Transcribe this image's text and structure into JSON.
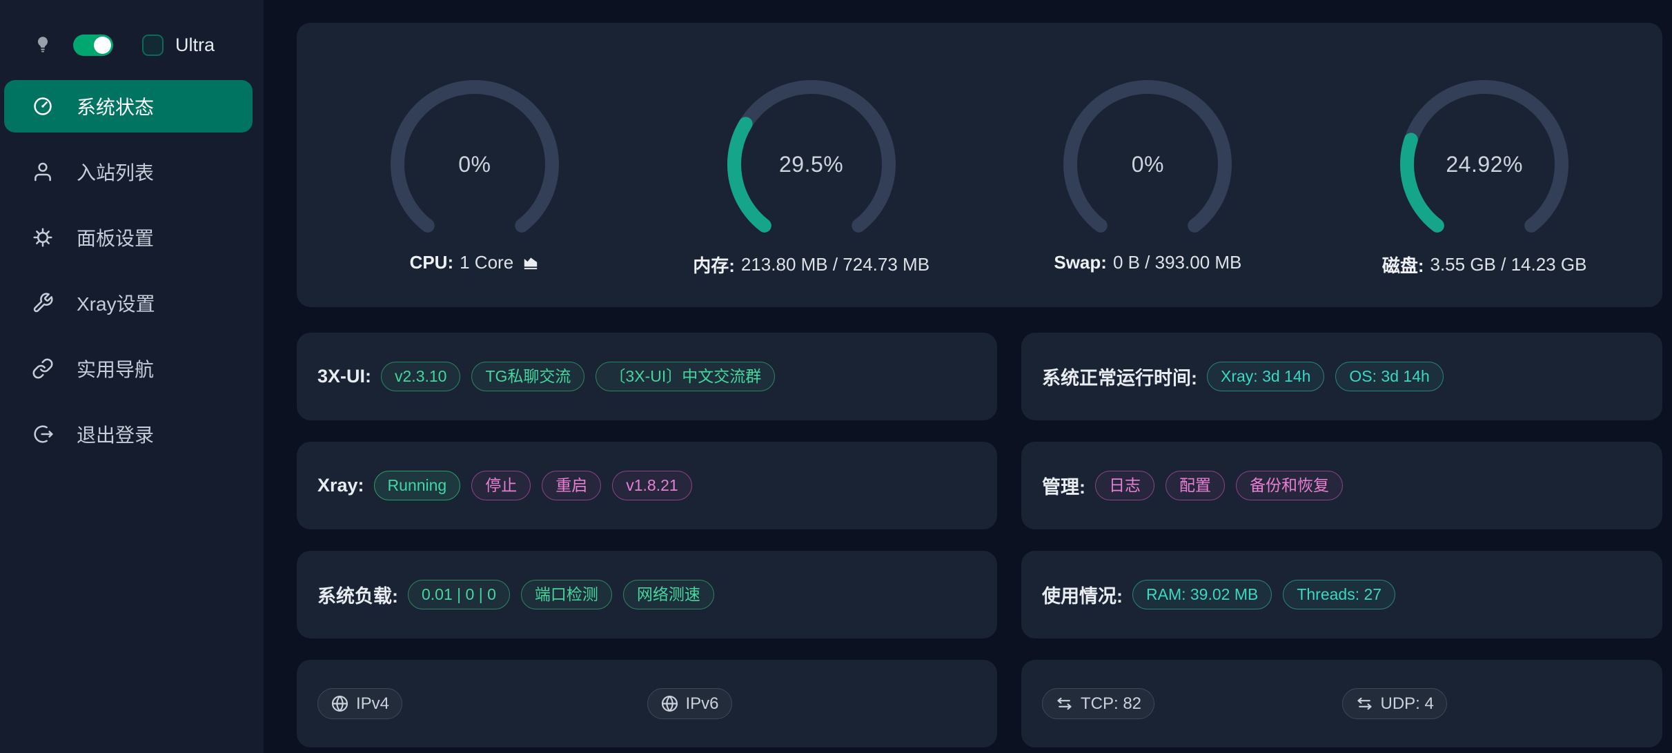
{
  "sidebar": {
    "ultra_label": "Ultra",
    "dark_mode_on": true,
    "ultra_checked": false,
    "items": [
      {
        "name": "system-status",
        "icon": "dashboard-icon",
        "label": "系统状态",
        "active": true
      },
      {
        "name": "inbounds",
        "icon": "user-icon",
        "label": "入站列表",
        "active": false
      },
      {
        "name": "panel-settings",
        "icon": "gear-icon",
        "label": "面板设置",
        "active": false
      },
      {
        "name": "xray-settings",
        "icon": "wrench-icon",
        "label": "Xray设置",
        "active": false
      },
      {
        "name": "useful-links",
        "icon": "link-icon",
        "label": "实用导航",
        "active": false
      },
      {
        "name": "logout",
        "icon": "logout-icon",
        "label": "退出登录",
        "active": false
      }
    ]
  },
  "gauges": [
    {
      "name": "cpu-gauge",
      "percent": 0,
      "percent_label": "0%",
      "label": "CPU:",
      "value": "1 Core",
      "chart_icon": true
    },
    {
      "name": "memory-gauge",
      "percent": 29.5,
      "percent_label": "29.5%",
      "label": "内存:",
      "value": "213.80 MB / 724.73 MB",
      "chart_icon": false
    },
    {
      "name": "swap-gauge",
      "percent": 0,
      "percent_label": "0%",
      "label": "Swap:",
      "value": "0 B / 393.00 MB",
      "chart_icon": false
    },
    {
      "name": "disk-gauge",
      "percent": 24.92,
      "percent_label": "24.92%",
      "label": "磁盘:",
      "value": "3.55 GB / 14.23 GB",
      "chart_icon": false
    }
  ],
  "cards": [
    {
      "name": "xui-info-card",
      "label": "3X-UI:",
      "split": false,
      "badges": [
        {
          "name": "panel-version-badge",
          "text": "v2.3.10",
          "style": "green",
          "interactable": true
        },
        {
          "name": "tg-chat-badge",
          "text": "TG私聊交流",
          "style": "green",
          "interactable": true
        },
        {
          "name": "tg-group-badge",
          "text": "〔3X-UI〕中文交流群",
          "style": "green",
          "interactable": true
        }
      ]
    },
    {
      "name": "uptime-card",
      "label": "系统正常运行时间:",
      "split": false,
      "badges": [
        {
          "name": "xray-uptime-badge",
          "text": "Xray: 3d 14h",
          "style": "teal",
          "interactable": false
        },
        {
          "name": "os-uptime-badge",
          "text": "OS: 3d 14h",
          "style": "teal",
          "interactable": false
        }
      ]
    },
    {
      "name": "xray-card",
      "label": "Xray:",
      "split": false,
      "badges": [
        {
          "name": "xray-running-badge",
          "text": "Running",
          "style": "running",
          "interactable": false
        },
        {
          "name": "xray-stop-button",
          "text": "停止",
          "style": "pink",
          "interactable": true
        },
        {
          "name": "xray-restart-button",
          "text": "重启",
          "style": "pink",
          "interactable": true
        },
        {
          "name": "xray-version-badge",
          "text": "v1.8.21",
          "style": "pink",
          "interactable": true
        }
      ]
    },
    {
      "name": "admin-card",
      "label": "管理:",
      "split": false,
      "badges": [
        {
          "name": "logs-button",
          "text": "日志",
          "style": "pink",
          "interactable": true
        },
        {
          "name": "config-button",
          "text": "配置",
          "style": "pink",
          "interactable": true
        },
        {
          "name": "backup-restore-button",
          "text": "备份和恢复",
          "style": "pink",
          "interactable": true
        }
      ]
    },
    {
      "name": "load-card",
      "label": "系统负载:",
      "split": false,
      "badges": [
        {
          "name": "load-average-badge",
          "text": "0.01 | 0 | 0",
          "style": "green",
          "interactable": false
        },
        {
          "name": "port-check-button",
          "text": "端口检测",
          "style": "green",
          "interactable": true
        },
        {
          "name": "speedtest-button",
          "text": "网络测速",
          "style": "green",
          "interactable": true
        }
      ]
    },
    {
      "name": "usage-card",
      "label": "使用情况:",
      "split": false,
      "badges": [
        {
          "name": "ram-usage-badge",
          "text": "RAM: 39.02 MB",
          "style": "teal",
          "interactable": false
        },
        {
          "name": "threads-badge",
          "text": "Threads: 27",
          "style": "teal",
          "interactable": false
        }
      ]
    },
    {
      "name": "ip-card",
      "label": "",
      "split": true,
      "badges": [
        {
          "name": "ipv4-badge",
          "text": "IPv4",
          "style": "neutral",
          "icon": "globe-icon",
          "interactable": true
        },
        {
          "name": "ipv6-badge",
          "text": "IPv6",
          "style": "neutral",
          "icon": "globe-icon",
          "interactable": true
        }
      ]
    },
    {
      "name": "ports-card",
      "label": "",
      "split": true,
      "badges": [
        {
          "name": "tcp-count-badge",
          "text": "TCP: 82",
          "style": "neutral",
          "icon": "swap-icon",
          "interactable": false
        },
        {
          "name": "udp-count-badge",
          "text": "UDP: 4",
          "style": "neutral",
          "icon": "swap-icon",
          "interactable": false
        }
      ]
    }
  ],
  "colors": {
    "page_bg": "#0b1120",
    "sidebar_bg": "#141c2e",
    "card_bg": "#1a2333",
    "active_item_teal": "#007361",
    "toggle_green": "#00a870",
    "gauge_track": "#333e57",
    "gauge_fill": "#15a58b",
    "badge_green": "#46d69d",
    "badge_teal": "#3cd7c1",
    "badge_pink": "#e87fd4",
    "badge_running": "#40d7a3"
  }
}
